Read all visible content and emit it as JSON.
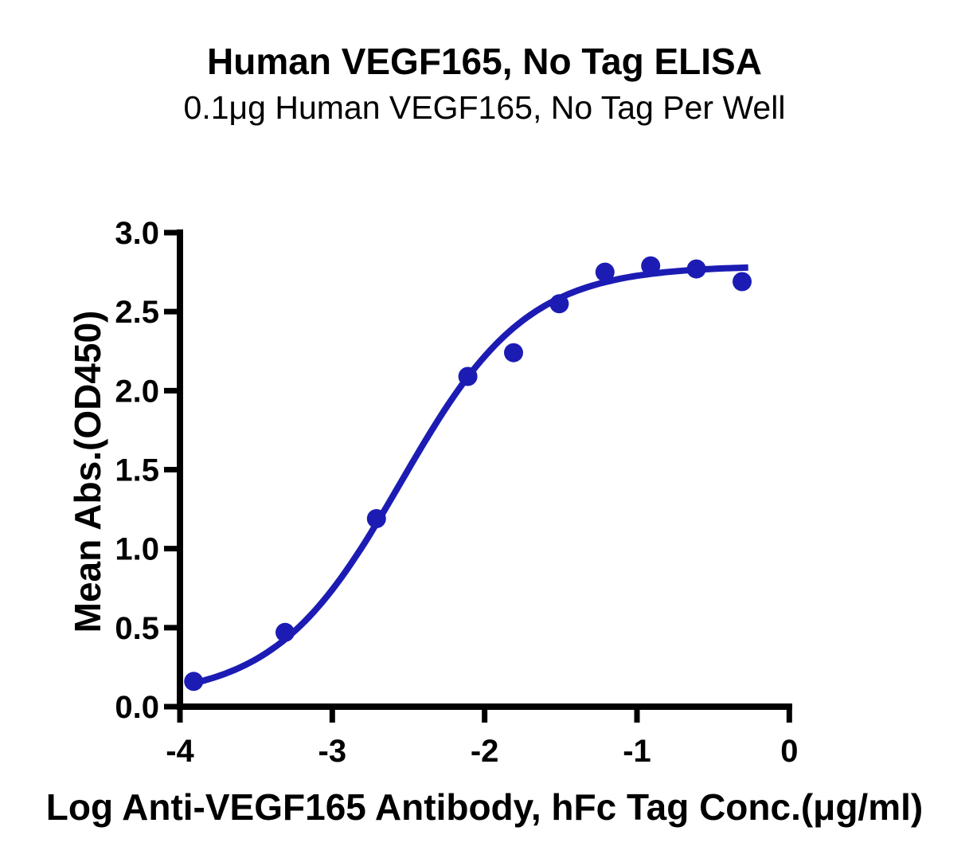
{
  "figure": {
    "background": "#ffffff"
  },
  "chart_data": {
    "type": "scatter",
    "title": "Human VEGF165, No Tag ELISA",
    "subtitle": "0.1μg Human VEGF165, No Tag Per Well",
    "xlabel": "Log Anti-VEGF165 Antibody, hFc Tag Conc.(μg/ml)",
    "ylabel": "Mean Abs.(OD450)",
    "xlim": [
      -4,
      0
    ],
    "ylim": [
      0.0,
      3.0
    ],
    "grid": false,
    "legend_position": "none",
    "colors": {
      "series": "#1C1CB4",
      "axis": "#000000",
      "text": "#000000"
    },
    "x_ticks": [
      {
        "value": -4,
        "label": "-4"
      },
      {
        "value": -3,
        "label": "-3"
      },
      {
        "value": -2,
        "label": "-2"
      },
      {
        "value": -1,
        "label": "-1"
      },
      {
        "value": 0,
        "label": "0"
      }
    ],
    "y_ticks": [
      {
        "value": 0.0,
        "label": "0.0"
      },
      {
        "value": 0.5,
        "label": "0.5"
      },
      {
        "value": 1.0,
        "label": "1.0"
      },
      {
        "value": 1.5,
        "label": "1.5"
      },
      {
        "value": 2.0,
        "label": "2.0"
      },
      {
        "value": 2.5,
        "label": "2.5"
      },
      {
        "value": 3.0,
        "label": "3.0"
      }
    ],
    "series": [
      {
        "name": "Anti-VEGF165 Antibody, hFc Tag",
        "marker": "circle",
        "color": "#1C1CB4",
        "points": [
          {
            "x": -3.91,
            "y": 0.16
          },
          {
            "x": -3.31,
            "y": 0.47
          },
          {
            "x": -2.71,
            "y": 1.19
          },
          {
            "x": -2.11,
            "y": 2.09
          },
          {
            "x": -1.81,
            "y": 2.24
          },
          {
            "x": -1.51,
            "y": 2.55
          },
          {
            "x": -1.21,
            "y": 2.75
          },
          {
            "x": -0.91,
            "y": 2.79
          },
          {
            "x": -0.61,
            "y": 2.77
          },
          {
            "x": -0.31,
            "y": 2.69
          }
        ]
      }
    ],
    "fit_curve": {
      "model": "4PL sigmoidal dose-response",
      "bottom": 0.05,
      "top": 2.79,
      "log_ec50": -2.55,
      "hill_slope": 1.05,
      "x_start": -3.91,
      "x_end": -0.27,
      "color": "#1C1CB4"
    }
  }
}
